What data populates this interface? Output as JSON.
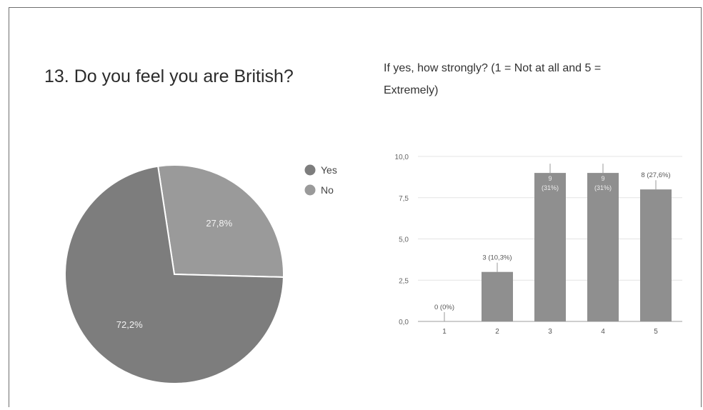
{
  "chart_data": [
    {
      "type": "pie",
      "title": "13. Do you feel you are British?",
      "categories": [
        "Yes",
        "No"
      ],
      "values": [
        72.2,
        27.8
      ],
      "labels": [
        "72,2%",
        "27,8%"
      ],
      "colors": [
        "#7d7d7d",
        "#9a9a9a"
      ],
      "legend": "right"
    },
    {
      "type": "bar",
      "title": "If yes, how strongly? (1 = Not at all and 5 = Extremely)",
      "categories": [
        "1",
        "2",
        "3",
        "4",
        "5"
      ],
      "values": [
        0,
        3,
        9,
        9,
        8
      ],
      "data_labels": [
        "0 (0%)",
        "3 (10,3%)",
        "9 (31%)",
        "9 (31%)",
        "8 (27,6%)"
      ],
      "ylim": [
        0,
        10
      ],
      "yticks": [
        "0,0",
        "2,5",
        "5,0",
        "7,5",
        "10,0"
      ],
      "grid": true,
      "color": "#8f8f8f"
    }
  ]
}
